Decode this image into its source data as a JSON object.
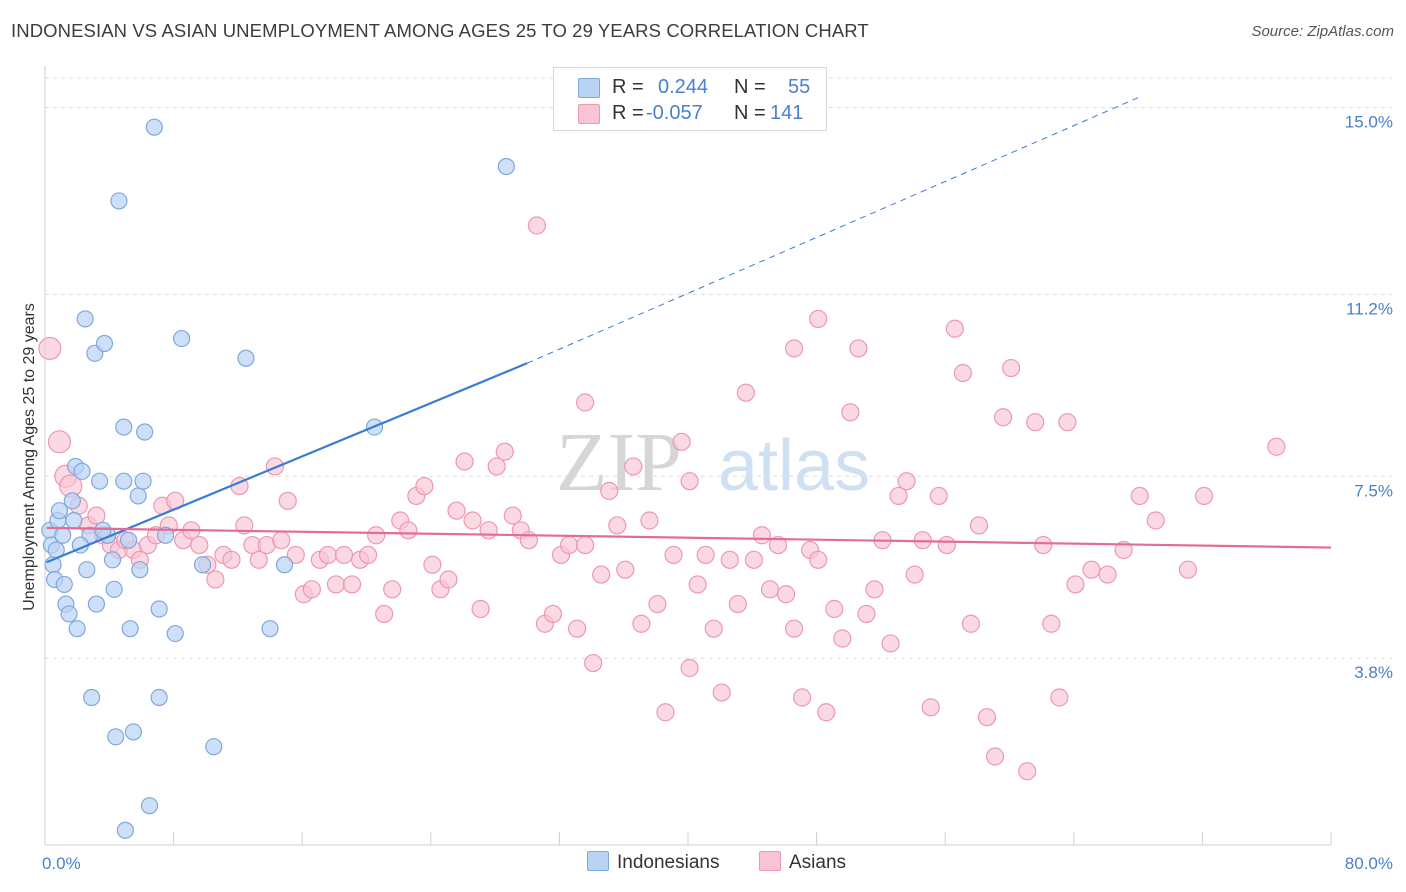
{
  "title": "INDONESIAN VS ASIAN UNEMPLOYMENT AMONG AGES 25 TO 29 YEARS CORRELATION CHART",
  "source": "Source: ZipAtlas.com",
  "watermark": {
    "zip": "ZIP",
    "atlas": "atlas"
  },
  "legend": {
    "series1": {
      "r_label": "R =",
      "r_value": "0.244",
      "n_label": "N =",
      "n_value": "55"
    },
    "series2": {
      "r_label": "R =",
      "r_value": "-0.057",
      "n_label": "N =",
      "n_value": "141"
    }
  },
  "colors": {
    "indonesian_fill": "#b9d3f3",
    "indonesian_stroke": "#7fa8db",
    "indonesian_line": "#3a7bd5",
    "asian_fill": "#f9c5d4",
    "asian_stroke": "#ee97b1",
    "asian_line": "#e36b95",
    "value_blue": "#4a7fd1",
    "grid": "#dcdcdc"
  },
  "chart_data": {
    "type": "scatter",
    "title": "INDONESIAN VS ASIAN UNEMPLOYMENT AMONG AGES 25 TO 29 YEARS CORRELATION CHART",
    "xlabel": "",
    "ylabel": "Unemployment Among Ages 25 to 29 years",
    "xlim": [
      0,
      80
    ],
    "ylim": [
      0,
      15.6
    ],
    "x_tick_labels": [
      "0.0%",
      "80.0%"
    ],
    "y_ticks": [
      3.8,
      7.5,
      11.2,
      15.0
    ],
    "y_tick_labels": [
      "3.8%",
      "7.5%",
      "11.2%",
      "15.0%"
    ],
    "legend_entries": [
      "Indonesians",
      "Asians"
    ],
    "series": [
      {
        "name": "Indonesians",
        "r": 0.244,
        "n": 55,
        "trend": {
          "x0": 0.1,
          "y0": 5.75,
          "x1": 30,
          "y1": 9.8,
          "dash_to_x": 68,
          "dash_to_y": 15.2
        },
        "points": [
          [
            0.3,
            6.4
          ],
          [
            0.4,
            6.1
          ],
          [
            0.5,
            5.7
          ],
          [
            0.6,
            5.4
          ],
          [
            0.7,
            6.0
          ],
          [
            0.8,
            6.6
          ],
          [
            0.9,
            6.8
          ],
          [
            1.1,
            6.3
          ],
          [
            1.2,
            5.3
          ],
          [
            1.3,
            4.9
          ],
          [
            1.5,
            4.7
          ],
          [
            1.7,
            7.0
          ],
          [
            1.8,
            6.6
          ],
          [
            1.9,
            7.7
          ],
          [
            2.0,
            4.4
          ],
          [
            2.3,
            7.6
          ],
          [
            2.5,
            10.7
          ],
          [
            2.6,
            5.6
          ],
          [
            2.8,
            6.3
          ],
          [
            2.9,
            3.0
          ],
          [
            3.1,
            10.0
          ],
          [
            3.2,
            4.9
          ],
          [
            3.4,
            7.4
          ],
          [
            3.7,
            10.2
          ],
          [
            3.9,
            6.3
          ],
          [
            4.2,
            5.8
          ],
          [
            4.3,
            5.2
          ],
          [
            4.4,
            2.2
          ],
          [
            4.6,
            13.1
          ],
          [
            4.9,
            8.5
          ],
          [
            4.9,
            7.4
          ],
          [
            5.2,
            6.2
          ],
          [
            5.3,
            4.4
          ],
          [
            5.5,
            2.3
          ],
          [
            5.8,
            7.1
          ],
          [
            5.9,
            5.6
          ],
          [
            6.1,
            7.4
          ],
          [
            6.2,
            8.4
          ],
          [
            6.5,
            0.8
          ],
          [
            6.8,
            14.6
          ],
          [
            7.1,
            4.8
          ],
          [
            7.1,
            3.0
          ],
          [
            7.5,
            6.3
          ],
          [
            8.1,
            4.3
          ],
          [
            8.5,
            10.3
          ],
          [
            9.8,
            5.7
          ],
          [
            10.5,
            2.0
          ],
          [
            12.5,
            9.9
          ],
          [
            14.0,
            4.4
          ],
          [
            14.9,
            5.7
          ],
          [
            20.5,
            8.5
          ],
          [
            28.7,
            13.8
          ],
          [
            5.0,
            0.3
          ],
          [
            3.6,
            6.4
          ],
          [
            2.2,
            6.1
          ]
        ]
      },
      {
        "name": "Asians",
        "r": -0.057,
        "n": 141,
        "trend": {
          "x0": 0.1,
          "y0": 6.45,
          "x1": 80,
          "y1": 6.05
        },
        "points": [
          [
            0.3,
            10.1
          ],
          [
            0.9,
            8.2
          ],
          [
            1.3,
            7.5
          ],
          [
            1.6,
            7.3
          ],
          [
            2.1,
            6.9
          ],
          [
            2.7,
            6.5
          ],
          [
            3.2,
            6.7
          ],
          [
            3.6,
            6.3
          ],
          [
            4.1,
            6.1
          ],
          [
            4.6,
            6.0
          ],
          [
            5.0,
            6.2
          ],
          [
            5.5,
            6.0
          ],
          [
            5.9,
            5.8
          ],
          [
            6.4,
            6.1
          ],
          [
            6.9,
            6.3
          ],
          [
            7.3,
            6.9
          ],
          [
            7.7,
            6.5
          ],
          [
            8.1,
            7.0
          ],
          [
            8.6,
            6.2
          ],
          [
            9.1,
            6.4
          ],
          [
            9.6,
            6.1
          ],
          [
            10.1,
            5.7
          ],
          [
            10.6,
            5.4
          ],
          [
            11.1,
            5.9
          ],
          [
            11.6,
            5.8
          ],
          [
            12.1,
            7.3
          ],
          [
            12.4,
            6.5
          ],
          [
            12.9,
            6.1
          ],
          [
            13.3,
            5.8
          ],
          [
            13.8,
            6.1
          ],
          [
            14.3,
            7.7
          ],
          [
            14.7,
            6.2
          ],
          [
            15.1,
            7.0
          ],
          [
            15.6,
            5.9
          ],
          [
            16.1,
            5.1
          ],
          [
            16.6,
            5.2
          ],
          [
            17.1,
            5.8
          ],
          [
            17.6,
            5.9
          ],
          [
            18.1,
            5.3
          ],
          [
            18.6,
            5.9
          ],
          [
            19.1,
            5.3
          ],
          [
            19.6,
            5.8
          ],
          [
            20.1,
            5.9
          ],
          [
            20.6,
            6.3
          ],
          [
            21.1,
            4.7
          ],
          [
            21.6,
            5.2
          ],
          [
            22.1,
            6.6
          ],
          [
            22.6,
            6.4
          ],
          [
            23.1,
            7.1
          ],
          [
            23.6,
            7.3
          ],
          [
            24.1,
            5.7
          ],
          [
            24.6,
            5.2
          ],
          [
            25.1,
            5.4
          ],
          [
            25.6,
            6.8
          ],
          [
            26.1,
            7.8
          ],
          [
            26.6,
            6.6
          ],
          [
            27.1,
            4.8
          ],
          [
            27.6,
            6.4
          ],
          [
            28.1,
            7.7
          ],
          [
            28.6,
            8.0
          ],
          [
            29.1,
            6.7
          ],
          [
            29.6,
            6.4
          ],
          [
            30.1,
            6.2
          ],
          [
            30.6,
            12.6
          ],
          [
            31.1,
            4.5
          ],
          [
            31.6,
            4.7
          ],
          [
            32.1,
            5.9
          ],
          [
            32.6,
            6.1
          ],
          [
            33.1,
            4.4
          ],
          [
            33.6,
            6.1
          ],
          [
            34.1,
            3.7
          ],
          [
            34.6,
            5.5
          ],
          [
            35.1,
            7.2
          ],
          [
            35.6,
            6.5
          ],
          [
            36.1,
            5.6
          ],
          [
            36.6,
            7.7
          ],
          [
            37.1,
            4.5
          ],
          [
            37.6,
            6.6
          ],
          [
            38.1,
            4.9
          ],
          [
            38.6,
            2.7
          ],
          [
            39.1,
            5.9
          ],
          [
            39.6,
            8.2
          ],
          [
            40.1,
            7.4
          ],
          [
            40.6,
            5.3
          ],
          [
            41.1,
            5.9
          ],
          [
            41.6,
            4.4
          ],
          [
            42.1,
            3.1
          ],
          [
            42.6,
            5.8
          ],
          [
            43.1,
            4.9
          ],
          [
            43.6,
            9.2
          ],
          [
            44.1,
            5.8
          ],
          [
            44.6,
            6.3
          ],
          [
            45.1,
            5.2
          ],
          [
            45.6,
            6.1
          ],
          [
            46.1,
            5.1
          ],
          [
            46.6,
            10.1
          ],
          [
            47.1,
            3.0
          ],
          [
            47.6,
            6.0
          ],
          [
            48.1,
            5.8
          ],
          [
            48.6,
            2.7
          ],
          [
            49.1,
            4.8
          ],
          [
            49.6,
            4.2
          ],
          [
            50.1,
            8.8
          ],
          [
            50.6,
            10.1
          ],
          [
            51.1,
            4.7
          ],
          [
            51.6,
            5.2
          ],
          [
            52.1,
            6.2
          ],
          [
            52.6,
            4.1
          ],
          [
            53.1,
            7.1
          ],
          [
            53.6,
            7.4
          ],
          [
            54.1,
            5.5
          ],
          [
            54.6,
            6.2
          ],
          [
            55.1,
            2.8
          ],
          [
            55.6,
            7.1
          ],
          [
            56.1,
            6.1
          ],
          [
            56.6,
            10.5
          ],
          [
            57.1,
            9.6
          ],
          [
            57.6,
            4.5
          ],
          [
            58.1,
            6.5
          ],
          [
            58.6,
            2.6
          ],
          [
            59.1,
            1.8
          ],
          [
            59.6,
            8.7
          ],
          [
            60.1,
            9.7
          ],
          [
            61.1,
            1.5
          ],
          [
            61.6,
            8.6
          ],
          [
            62.1,
            6.1
          ],
          [
            62.6,
            4.5
          ],
          [
            63.1,
            3.0
          ],
          [
            63.6,
            8.6
          ],
          [
            64.1,
            5.3
          ],
          [
            65.1,
            5.6
          ],
          [
            66.1,
            5.5
          ],
          [
            67.1,
            6.0
          ],
          [
            68.1,
            7.1
          ],
          [
            69.1,
            6.6
          ],
          [
            71.1,
            5.6
          ],
          [
            72.1,
            7.1
          ],
          [
            48.1,
            10.7
          ],
          [
            33.6,
            9.0
          ],
          [
            40.1,
            3.6
          ],
          [
            46.6,
            4.4
          ],
          [
            76.6,
            8.1
          ]
        ]
      }
    ]
  }
}
